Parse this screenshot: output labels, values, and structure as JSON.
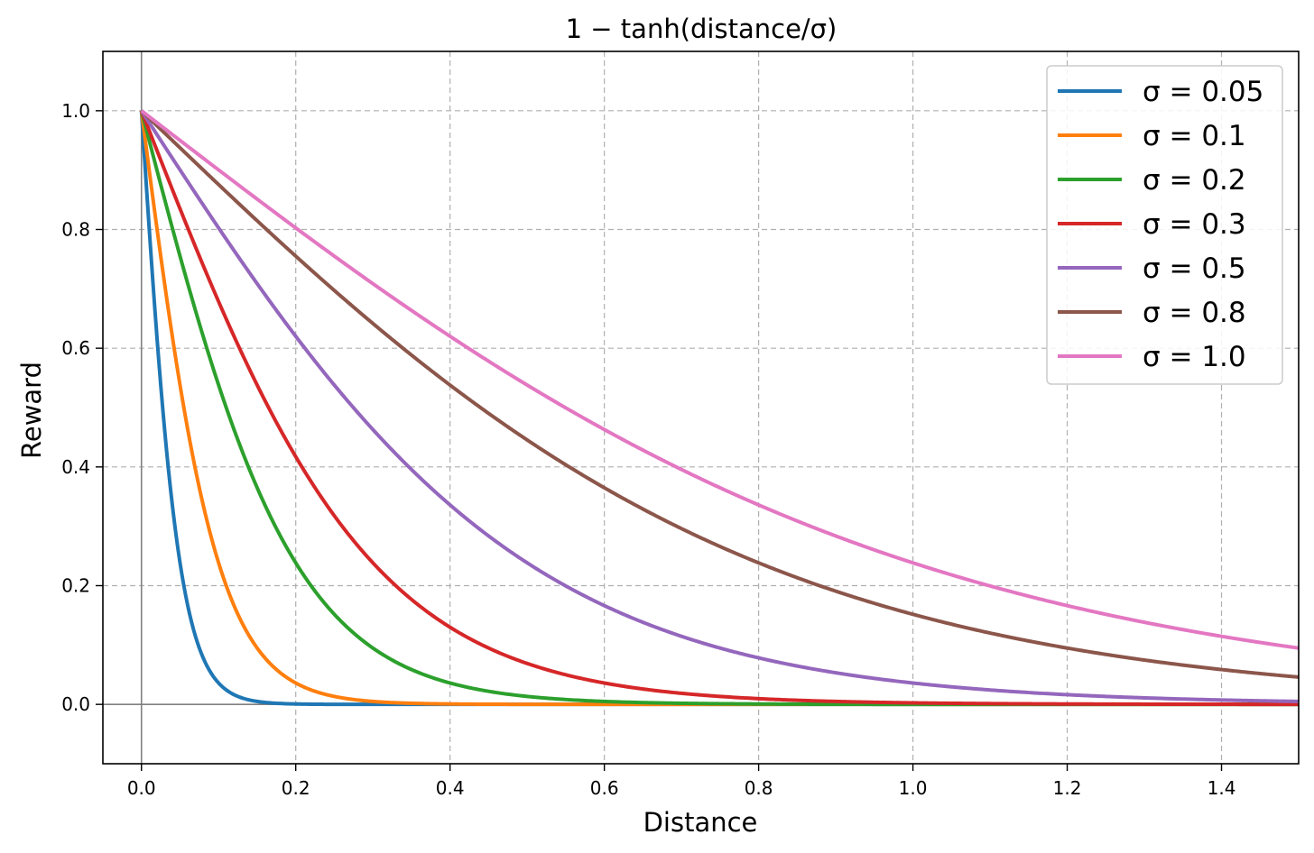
{
  "chart_data": {
    "type": "line",
    "title": "1 − tanh(distance/σ)",
    "xlabel": "Distance",
    "ylabel": "Reward",
    "xlim": [
      -0.05,
      1.5
    ],
    "ylim": [
      -0.1,
      1.1
    ],
    "xticks": [
      0.0,
      0.2,
      0.4,
      0.6,
      0.8,
      1.0,
      1.2,
      1.4
    ],
    "xtick_labels": [
      "0.0",
      "0.2",
      "0.4",
      "0.6",
      "0.8",
      "1.0",
      "1.2",
      "1.4"
    ],
    "yticks": [
      0.0,
      0.2,
      0.4,
      0.6,
      0.8,
      1.0
    ],
    "ytick_labels": [
      "0.0",
      "0.2",
      "0.4",
      "0.6",
      "0.8",
      "1.0"
    ],
    "grid": true,
    "legend_position": "top-right",
    "function": "1 - tanh(x / sigma)",
    "x_samples": [
      0.0,
      0.05,
      0.1,
      0.2,
      0.3,
      0.4,
      0.6,
      0.8,
      1.0,
      1.2,
      1.5
    ],
    "series": [
      {
        "name": "σ = 0.05",
        "sigma": 0.05,
        "color": "#1f77b4",
        "values": [
          1.0,
          0.2384,
          0.036,
          0.0007,
          0.0,
          0.0,
          0.0,
          0.0,
          0.0,
          0.0,
          0.0
        ]
      },
      {
        "name": "σ = 0.1",
        "sigma": 0.1,
        "color": "#ff7f0e",
        "values": [
          1.0,
          0.5379,
          0.2384,
          0.036,
          0.0049,
          0.0007,
          0.0,
          0.0,
          0.0,
          0.0,
          0.0
        ]
      },
      {
        "name": "σ = 0.2",
        "sigma": 0.2,
        "color": "#2ca02c",
        "values": [
          1.0,
          0.7551,
          0.5379,
          0.2384,
          0.0949,
          0.036,
          0.0049,
          0.0007,
          0.0001,
          0.0,
          0.0
        ]
      },
      {
        "name": "σ = 0.3",
        "sigma": 0.3,
        "color": "#d62728",
        "values": [
          1.0,
          0.8349,
          0.6784,
          0.4172,
          0.2384,
          0.1303,
          0.036,
          0.0096,
          0.0025,
          0.0007,
          0.0001
        ]
      },
      {
        "name": "σ = 0.5",
        "sigma": 0.5,
        "color": "#9467bd",
        "values": [
          1.0,
          0.9003,
          0.8026,
          0.6201,
          0.4629,
          0.336,
          0.1663,
          0.0791,
          0.036,
          0.0162,
          0.0049
        ]
      },
      {
        "name": "σ = 0.8",
        "sigma": 0.8,
        "color": "#8c564b",
        "values": [
          1.0,
          0.9376,
          0.8756,
          0.7551,
          0.642,
          0.5379,
          0.3649,
          0.2384,
          0.1519,
          0.0949,
          0.0454
        ]
      },
      {
        "name": "σ = 1.0",
        "sigma": 1.0,
        "color": "#e377c2",
        "values": [
          1.0,
          0.95,
          0.9003,
          0.8026,
          0.7087,
          0.6201,
          0.4629,
          0.336,
          0.2384,
          0.1663,
          0.0949
        ]
      }
    ]
  }
}
